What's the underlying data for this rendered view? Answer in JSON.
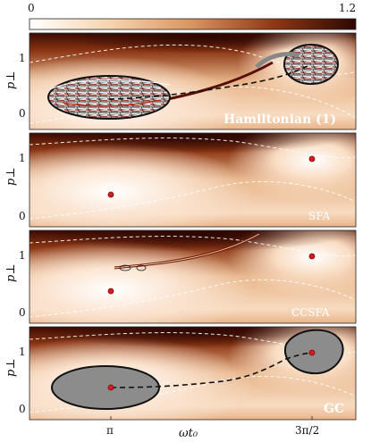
{
  "figure": {
    "colorbar": {
      "min_label": "0",
      "max_label": "1.2",
      "range": [
        0,
        1.2
      ]
    },
    "x_ticks": [
      {
        "value": 3.14159,
        "label": "π"
      },
      {
        "value": 4.71239,
        "label": "3π/2"
      }
    ],
    "x_label": "ωt₀",
    "y_label": "p⊥",
    "y_ticks": [
      "0",
      "1"
    ],
    "panels": [
      {
        "id": "hamiltonian",
        "name": "Hamiltonian (1)"
      },
      {
        "id": "sfa",
        "name": "SFA"
      },
      {
        "id": "ccsfa",
        "name": "CCSFA"
      },
      {
        "id": "gc",
        "name": "GC"
      }
    ],
    "colors": {
      "background_dark": "#3a0b03",
      "mid": "#b45a28",
      "light": "#f6d6b2",
      "white": "#ffffff",
      "marker": "#d41c1c",
      "shaded_region": "#8c8c8c"
    }
  }
}
